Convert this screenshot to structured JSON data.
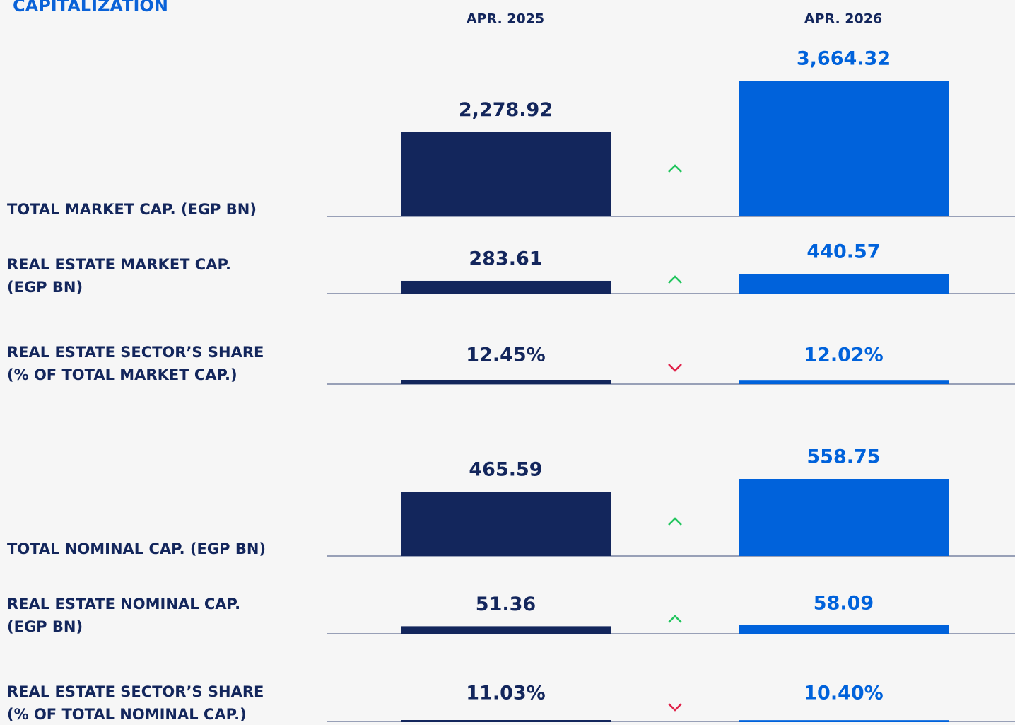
{
  "header": {
    "title": "CAPITALIZATION"
  },
  "columns": [
    "APR. 2025",
    "APR. 2026"
  ],
  "colors": [
    "#13265c",
    "#0062db"
  ],
  "rows": [
    {
      "label": [
        "TOTAL MARKET CAP. (EGP BN)"
      ],
      "values": [
        2278.92,
        3664.32
      ],
      "value_labels": [
        "2,278.92",
        "3,664.32"
      ]
    },
    {
      "label": [
        "REAL ESTATE MARKET CAP.",
        "(EGP BN)"
      ],
      "values": [
        283.61,
        440.57
      ]
    },
    {
      "label": [
        "REAL ESTATE SECTOR’S SHARE",
        "(% OF TOTAL MARKET CAP.)"
      ],
      "values": [
        12.45,
        12.02
      ],
      "value_labels": [
        "12.45%",
        "12.02%"
      ]
    },
    {
      "label": [
        "TOTAL NOMINAL CAP. (EGP BN)"
      ],
      "values": [
        465.59,
        558.75
      ]
    },
    {
      "label": [
        "REAL ESTATE NOMINAL CAP.",
        "(EGP BN)"
      ],
      "values": [
        51.36,
        58.09
      ]
    },
    {
      "label": [
        "REAL ESTATE SECTOR’S SHARE",
        "(% OF TOTAL NOMINAL CAP.)"
      ],
      "values": [
        11.03,
        10.4
      ],
      "value_labels": [
        "11.03%",
        "10.40%"
      ]
    }
  ]
}
